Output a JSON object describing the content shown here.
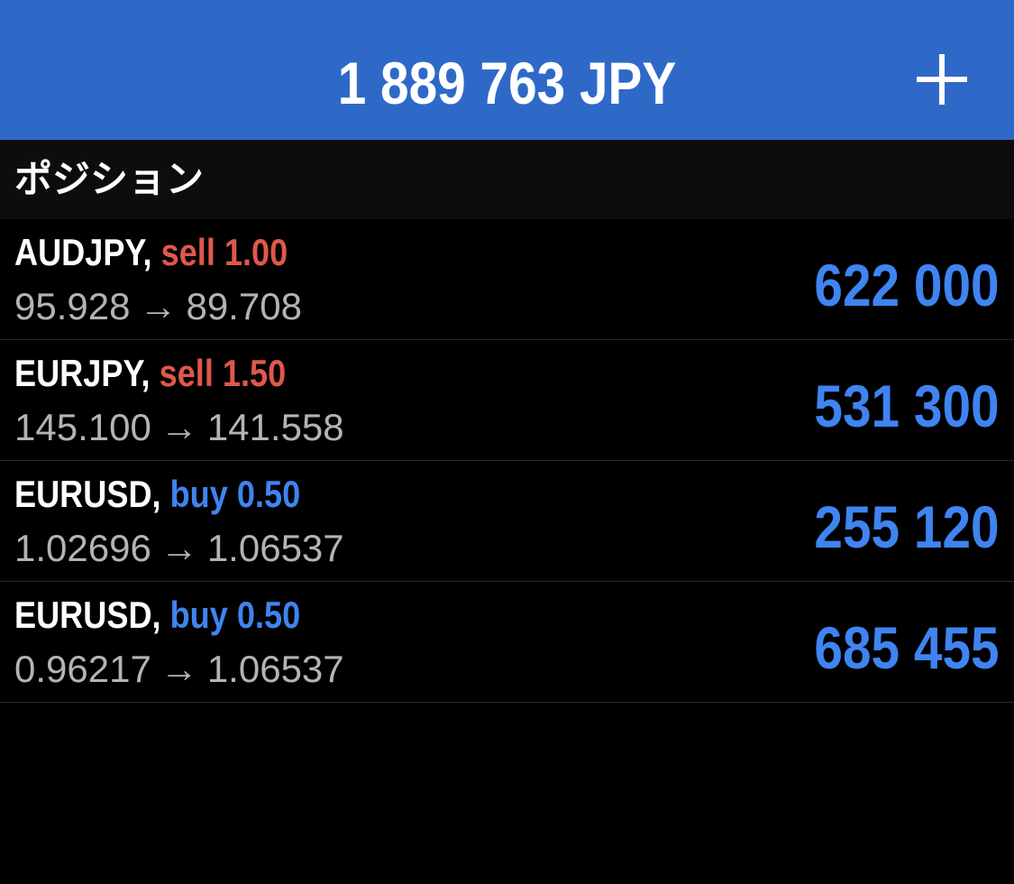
{
  "header": {
    "balance": "1 889 763 JPY",
    "add_icon": "plus-icon"
  },
  "section": {
    "title": "ポジション"
  },
  "colors": {
    "header_bg": "#2f69c8",
    "sell": "#e0584a",
    "buy": "#3f84f0",
    "profit": "#3f84f0"
  },
  "positions": [
    {
      "symbol": "AUDJPY,",
      "side": "sell",
      "volume": "1.00",
      "open_price": "95.928",
      "arrow": "→",
      "current_price": "89.708",
      "profit": "622 000"
    },
    {
      "symbol": "EURJPY,",
      "side": "sell",
      "volume": "1.50",
      "open_price": "145.100",
      "arrow": "→",
      "current_price": "141.558",
      "profit": "531 300"
    },
    {
      "symbol": "EURUSD,",
      "side": "buy",
      "volume": "0.50",
      "open_price": "1.02696",
      "arrow": "→",
      "current_price": "1.06537",
      "profit": "255 120"
    },
    {
      "symbol": "EURUSD,",
      "side": "buy",
      "volume": "0.50",
      "open_price": "0.96217",
      "arrow": "→",
      "current_price": "1.06537",
      "profit": "685 455"
    }
  ]
}
